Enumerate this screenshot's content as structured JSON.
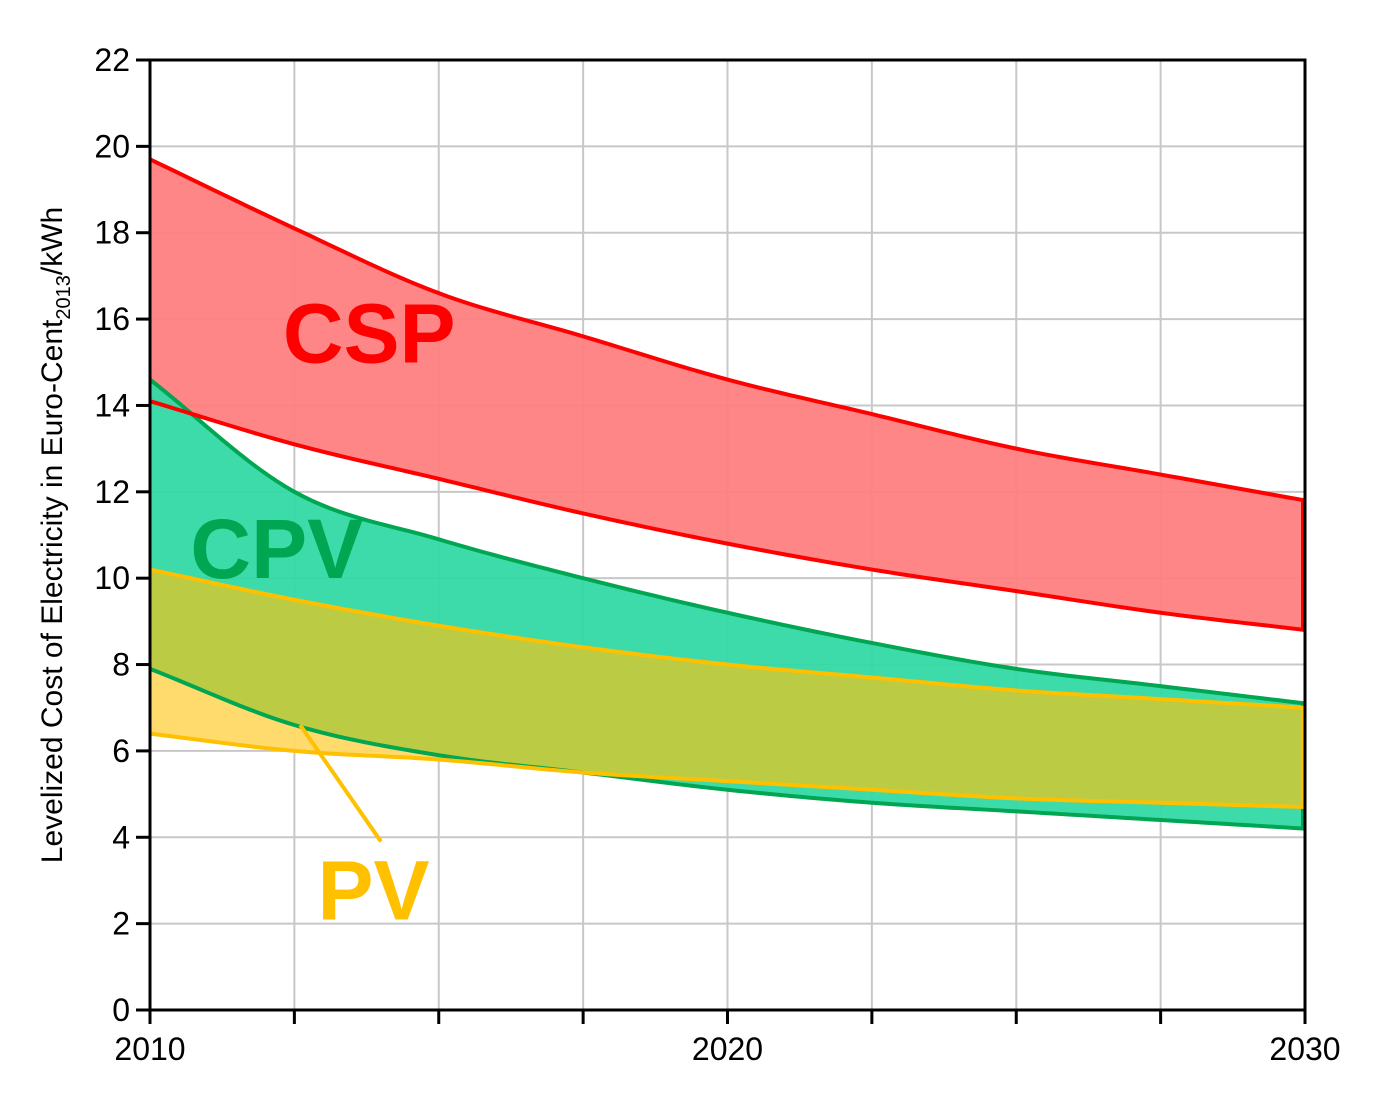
{
  "chart_data": {
    "type": "area",
    "title": "",
    "ylabel": {
      "before": "Levelized Cost of Electricity in Euro-Cent",
      "sub": "2013",
      "after": "/kWh"
    },
    "xlabel": "",
    "xlim": [
      2010,
      2030
    ],
    "ylim": [
      0,
      22
    ],
    "x_ticks": [
      2010,
      2012.5,
      2015,
      2017.5,
      2020,
      2022.5,
      2025,
      2027.5,
      2030
    ],
    "x_tick_labels": [
      {
        "value": 2010,
        "label": "2010"
      },
      {
        "value": 2020,
        "label": "2020"
      },
      {
        "value": 2030,
        "label": "2030"
      }
    ],
    "y_ticks": [
      0,
      2,
      4,
      6,
      8,
      10,
      12,
      14,
      16,
      18,
      20,
      22
    ],
    "grid": true,
    "x": [
      2010,
      2012.5,
      2015,
      2017.5,
      2020,
      2022.5,
      2025,
      2027.5,
      2030
    ],
    "series": [
      {
        "name": "CSP",
        "label": "CSP",
        "line_color": "#ff0000",
        "fill_color": "#ff7f7f",
        "upper": [
          19.7,
          18.1,
          16.6,
          15.6,
          14.6,
          13.8,
          13.0,
          12.4,
          11.8
        ],
        "lower": [
          14.1,
          13.1,
          12.3,
          11.5,
          10.8,
          10.2,
          9.7,
          9.2,
          8.8
        ]
      },
      {
        "name": "CPV",
        "label": "CPV",
        "line_color": "#00a651",
        "fill_color": "#33d9a5",
        "upper": [
          14.6,
          12.0,
          10.9,
          10.0,
          9.2,
          8.5,
          7.9,
          7.5,
          7.1
        ],
        "lower": [
          7.9,
          6.6,
          5.9,
          5.5,
          5.1,
          4.8,
          4.6,
          4.4,
          4.2
        ]
      },
      {
        "name": "PV",
        "label": "PV",
        "line_color": "#ffc000",
        "fill_color": "#ffd966",
        "upper": [
          10.2,
          9.5,
          8.9,
          8.4,
          8.0,
          7.7,
          7.4,
          7.2,
          7.0
        ],
        "lower": [
          6.4,
          6.0,
          5.8,
          5.5,
          5.3,
          5.1,
          4.9,
          4.8,
          4.7
        ]
      }
    ],
    "overlap_fill_color": "#bccb44",
    "annotations": [
      {
        "series": "PV",
        "text": "PV",
        "color": "#ffc000",
        "points_to": {
          "x": 2012.6,
          "y": 6.6
        }
      }
    ]
  }
}
